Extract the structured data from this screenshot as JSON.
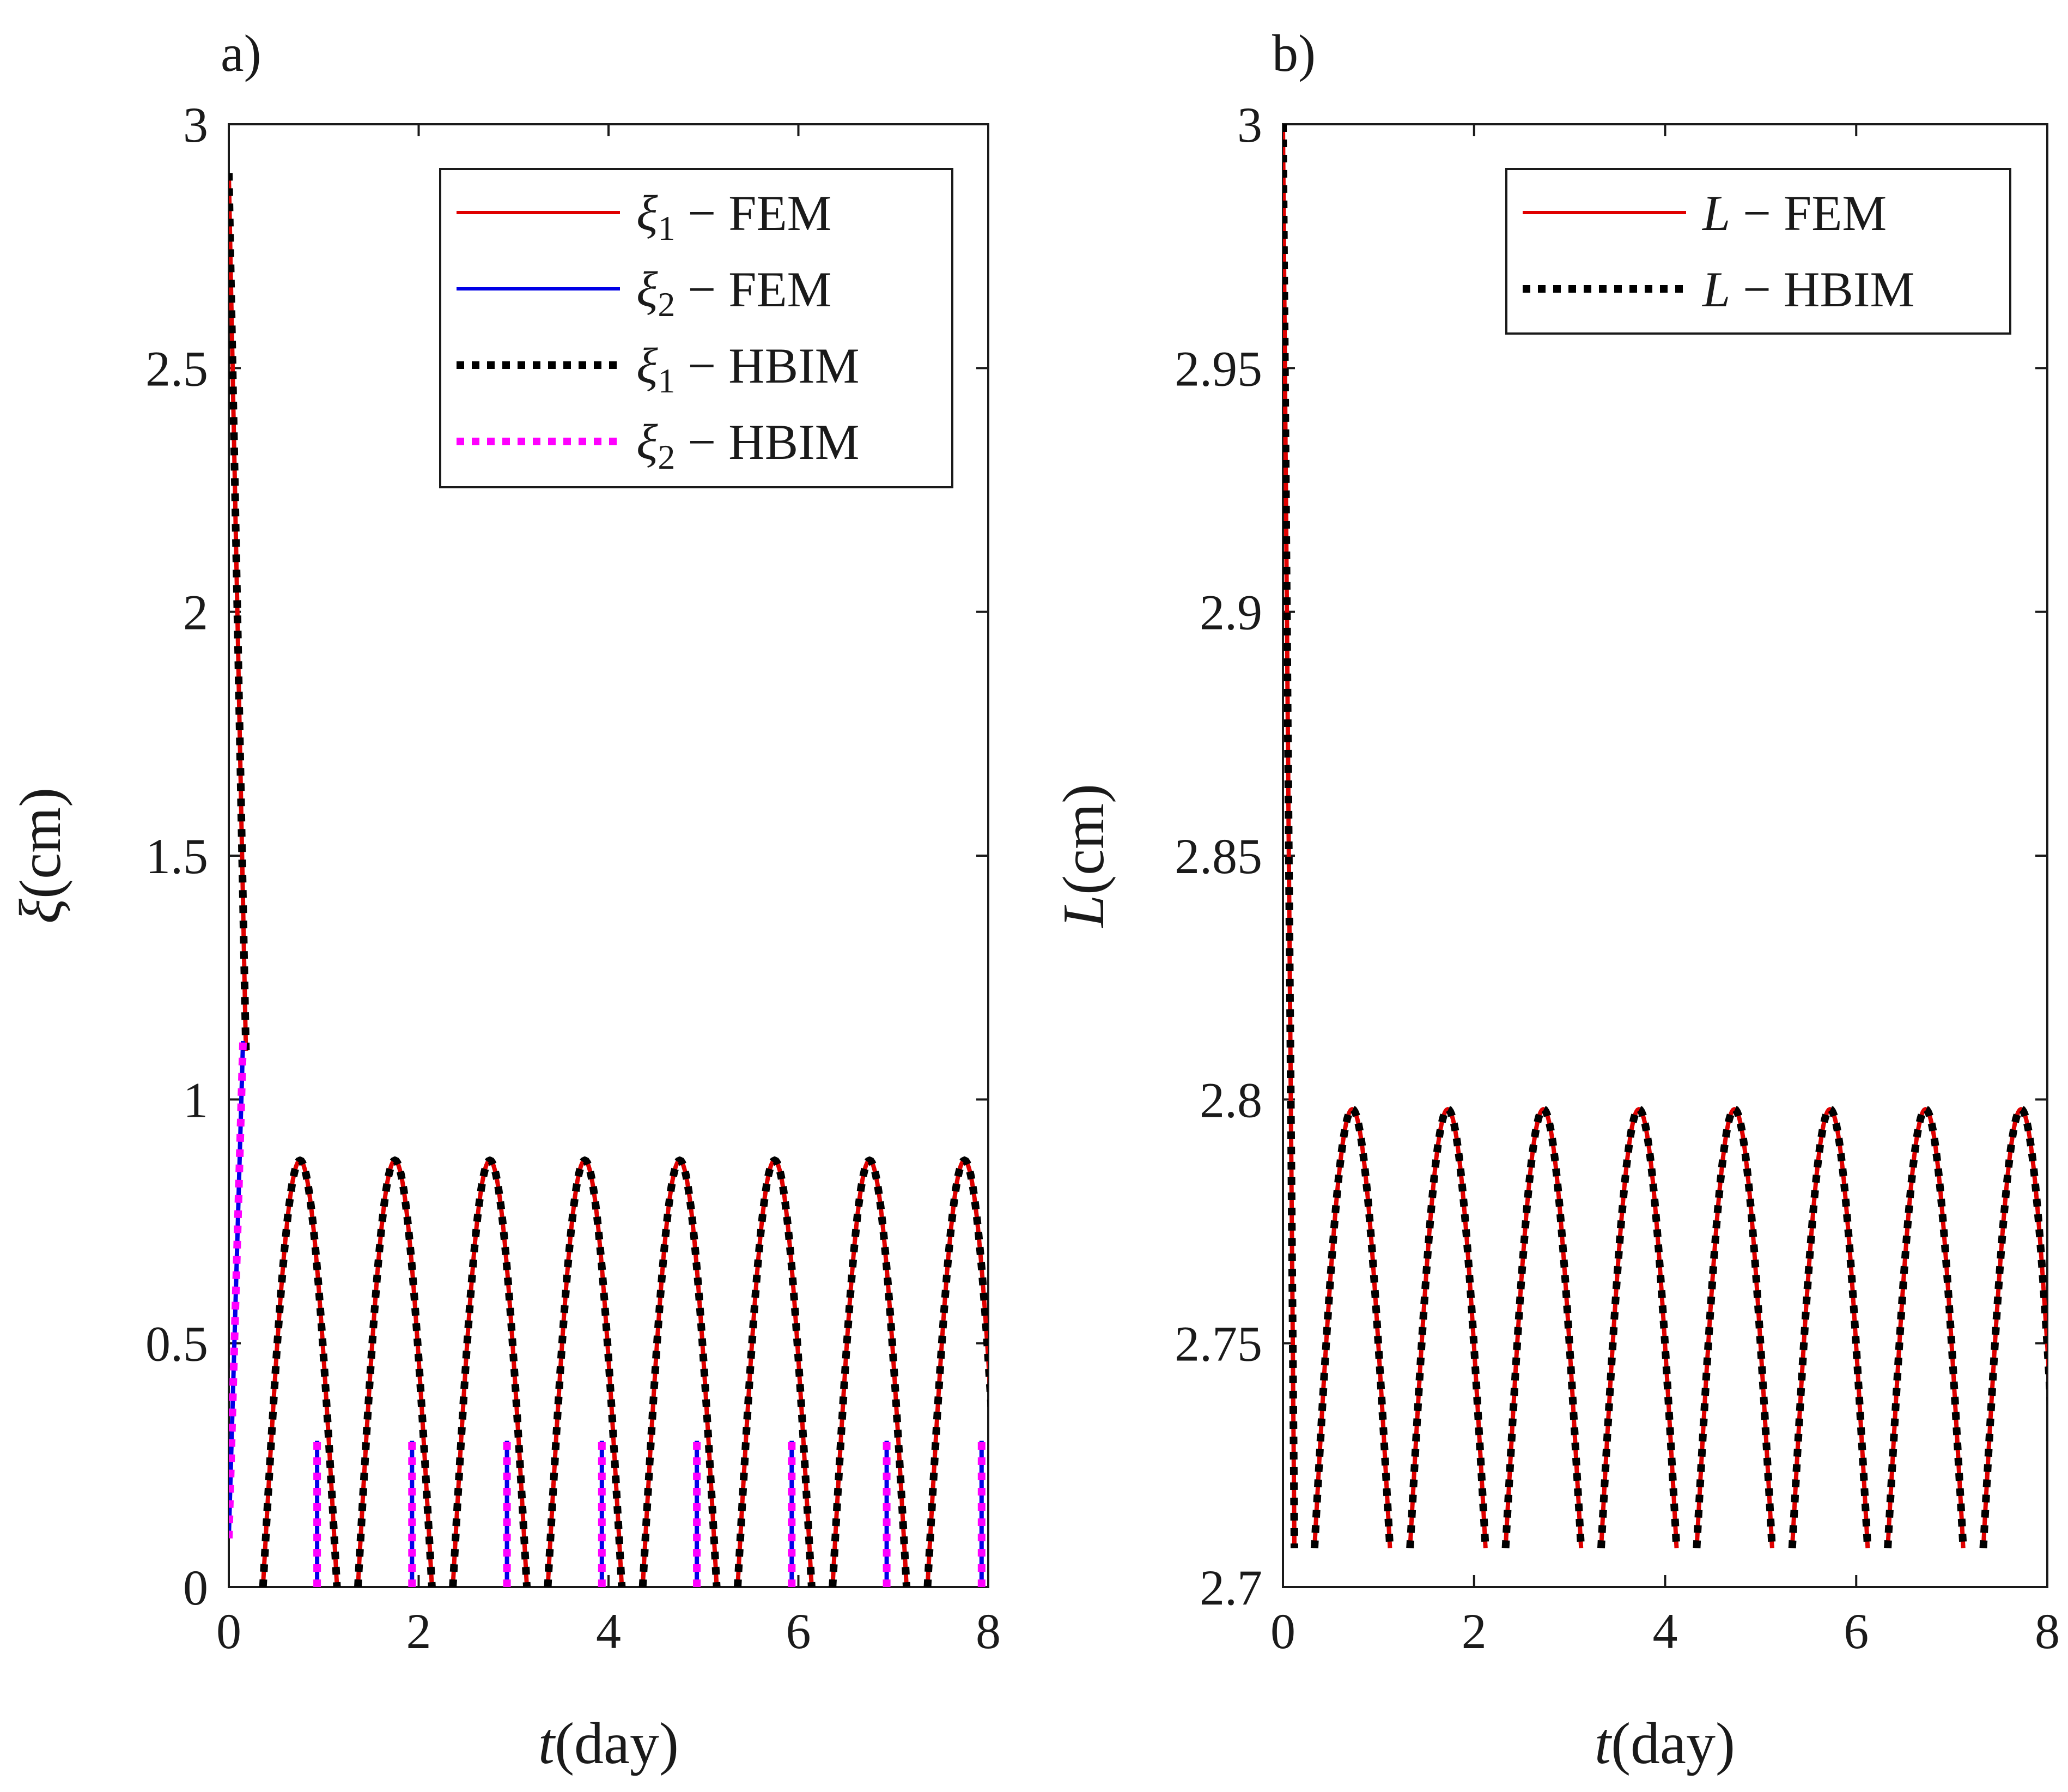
{
  "colors": {
    "fem": "#e00000",
    "hbim_1": "#000000",
    "fem_2": "#0000e6",
    "hbim_2": "#ff00ff",
    "axis": "#1a1a1a"
  },
  "chart_data": [
    {
      "type": "line",
      "panel_label": "a)",
      "ylabel_symbol": "ξ",
      "ylabel_unit": "(cm)",
      "xlabel_symbol": "t",
      "xlabel_unit": "(day)",
      "xlim": [
        0,
        8
      ],
      "ylim": [
        0,
        3
      ],
      "xticks": [
        "0",
        "2",
        "4",
        "6",
        "8"
      ],
      "yticks": [
        "0",
        "0.5",
        "1",
        "1.5",
        "2",
        "2.5",
        "3"
      ],
      "legend": [
        {
          "sym": "ξ",
          "sub": "1",
          "text": " − FEM",
          "style": "solid",
          "color": "#e00000"
        },
        {
          "sym": "ξ",
          "sub": "2",
          "text": " − FEM",
          "style": "solid",
          "color": "#0000e6"
        },
        {
          "sym": "ξ",
          "sub": "1",
          "text": " − HBIM",
          "style": "dotted",
          "color": "#000000"
        },
        {
          "sym": "ξ",
          "sub": "2",
          "text": " − HBIM",
          "style": "dotted",
          "color": "#ff00ff"
        }
      ],
      "model": {
        "initial": 2.9,
        "peak": 0.875,
        "decay_end_day": 0.18,
        "decay_end_value": 1.1,
        "xi1_start_offset": 0.36,
        "xi1_peak_offset": 0.74,
        "xi1_end_offset": 1.1,
        "xi2_start_offset": 0.93,
        "xi2_top": 0.3,
        "xi2_first_start": 0.0,
        "xi2_first_top": 1.12,
        "xi2_first_end": 0.15,
        "period": 1.0
      },
      "series_names": [
        "ξ1 − FEM",
        "ξ2 − FEM",
        "ξ1 − HBIM",
        "ξ2 − HBIM"
      ]
    },
    {
      "type": "line",
      "panel_label": "b)",
      "ylabel_symbol": "L",
      "ylabel_unit": "(cm)",
      "xlabel_symbol": "t",
      "xlabel_unit": "(day)",
      "xlim": [
        0,
        8
      ],
      "ylim": [
        2.7,
        3
      ],
      "xticks": [
        "0",
        "2",
        "4",
        "6",
        "8"
      ],
      "yticks": [
        "2.7",
        "2.75",
        "2.8",
        "2.85",
        "2.9",
        "2.95",
        "3"
      ],
      "legend": [
        {
          "sym": "L",
          "sub": "",
          "text": " − FEM",
          "style": "solid",
          "color": "#e00000"
        },
        {
          "sym": "L",
          "sub": "",
          "text": " − HBIM",
          "style": "dotted",
          "color": "#000000"
        }
      ],
      "model": {
        "initial": 3.0,
        "peak": 2.798,
        "min": 2.708,
        "first_min_day": 0.12,
        "arch_start_offset": 0.33,
        "arch_peak_offset": 0.72,
        "arch_end_offset": 1.08,
        "period": 1.0
      },
      "series_names": [
        "L − FEM",
        "L − HBIM"
      ]
    }
  ]
}
